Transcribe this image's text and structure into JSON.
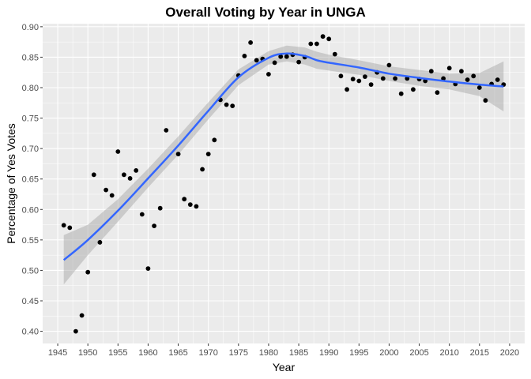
{
  "chart_data": {
    "type": "scatter",
    "title": "Overall Voting by Year in UNGA",
    "xlabel": "Year",
    "ylabel": "Percentage of Yes Votes",
    "xlim": [
      1942.5,
      2022.5
    ],
    "ylim": [
      0.38,
      0.905
    ],
    "x_ticks": [
      1945,
      1950,
      1955,
      1960,
      1965,
      1970,
      1975,
      1980,
      1985,
      1990,
      1995,
      2000,
      2005,
      2010,
      2015,
      2020
    ],
    "y_ticks": [
      0.4,
      0.45,
      0.5,
      0.55,
      0.6,
      0.65,
      0.7,
      0.75,
      0.8,
      0.85,
      0.9
    ],
    "grid": true,
    "legend": "none",
    "colors": {
      "panel": "#ebebeb",
      "grid": "#ffffff",
      "points": "#000000",
      "smooth_line": "#3366ff",
      "ci_band": "#999999"
    },
    "points": [
      [
        1946,
        0.574
      ],
      [
        1947,
        0.57
      ],
      [
        1948,
        0.4
      ],
      [
        1949,
        0.426
      ],
      [
        1950,
        0.497
      ],
      [
        1951,
        0.657
      ],
      [
        1952,
        0.546
      ],
      [
        1953,
        0.632
      ],
      [
        1954,
        0.623
      ],
      [
        1955,
        0.695
      ],
      [
        1956,
        0.657
      ],
      [
        1957,
        0.651
      ],
      [
        1958,
        0.664
      ],
      [
        1959,
        0.592
      ],
      [
        1960,
        0.503
      ],
      [
        1961,
        0.573
      ],
      [
        1962,
        0.602
      ],
      [
        1963,
        0.73
      ],
      [
        1965,
        0.691
      ],
      [
        1966,
        0.617
      ],
      [
        1967,
        0.608
      ],
      [
        1968,
        0.605
      ],
      [
        1969,
        0.666
      ],
      [
        1970,
        0.691
      ],
      [
        1971,
        0.714
      ],
      [
        1972,
        0.78
      ],
      [
        1973,
        0.772
      ],
      [
        1974,
        0.77
      ],
      [
        1975,
        0.82
      ],
      [
        1976,
        0.852
      ],
      [
        1977,
        0.874
      ],
      [
        1978,
        0.845
      ],
      [
        1979,
        0.847
      ],
      [
        1980,
        0.822
      ],
      [
        1981,
        0.841
      ],
      [
        1982,
        0.851
      ],
      [
        1983,
        0.851
      ],
      [
        1984,
        0.854
      ],
      [
        1985,
        0.842
      ],
      [
        1986,
        0.85
      ],
      [
        1987,
        0.872
      ],
      [
        1988,
        0.872
      ],
      [
        1989,
        0.884
      ],
      [
        1990,
        0.88
      ],
      [
        1991,
        0.855
      ],
      [
        1992,
        0.819
      ],
      [
        1993,
        0.797
      ],
      [
        1994,
        0.814
      ],
      [
        1995,
        0.811
      ],
      [
        1996,
        0.818
      ],
      [
        1997,
        0.805
      ],
      [
        1998,
        0.825
      ],
      [
        1999,
        0.815
      ],
      [
        2000,
        0.837
      ],
      [
        2001,
        0.815
      ],
      [
        2002,
        0.79
      ],
      [
        2003,
        0.815
      ],
      [
        2004,
        0.797
      ],
      [
        2005,
        0.814
      ],
      [
        2006,
        0.811
      ],
      [
        2007,
        0.827
      ],
      [
        2008,
        0.792
      ],
      [
        2009,
        0.815
      ],
      [
        2010,
        0.832
      ],
      [
        2011,
        0.806
      ],
      [
        2012,
        0.827
      ],
      [
        2013,
        0.813
      ],
      [
        2014,
        0.819
      ],
      [
        2015,
        0.8
      ],
      [
        2016,
        0.779
      ],
      [
        2017,
        0.806
      ],
      [
        2018,
        0.813
      ],
      [
        2019,
        0.805
      ]
    ],
    "smooth": {
      "x": [
        1946,
        1950,
        1955,
        1960,
        1965,
        1970,
        1975,
        1980,
        1983,
        1986,
        1988,
        1990,
        1995,
        2000,
        2005,
        2010,
        2015,
        2019
      ],
      "y": [
        0.517,
        0.55,
        0.598,
        0.651,
        0.705,
        0.762,
        0.817,
        0.849,
        0.856,
        0.852,
        0.845,
        0.841,
        0.833,
        0.823,
        0.816,
        0.81,
        0.805,
        0.802
      ],
      "lower": [
        0.477,
        0.525,
        0.58,
        0.636,
        0.69,
        0.748,
        0.804,
        0.838,
        0.843,
        0.838,
        0.831,
        0.828,
        0.821,
        0.811,
        0.803,
        0.797,
        0.786,
        0.761
      ],
      "upper": [
        0.558,
        0.575,
        0.617,
        0.667,
        0.72,
        0.776,
        0.83,
        0.86,
        0.869,
        0.866,
        0.859,
        0.854,
        0.845,
        0.835,
        0.829,
        0.823,
        0.824,
        0.843
      ]
    }
  }
}
